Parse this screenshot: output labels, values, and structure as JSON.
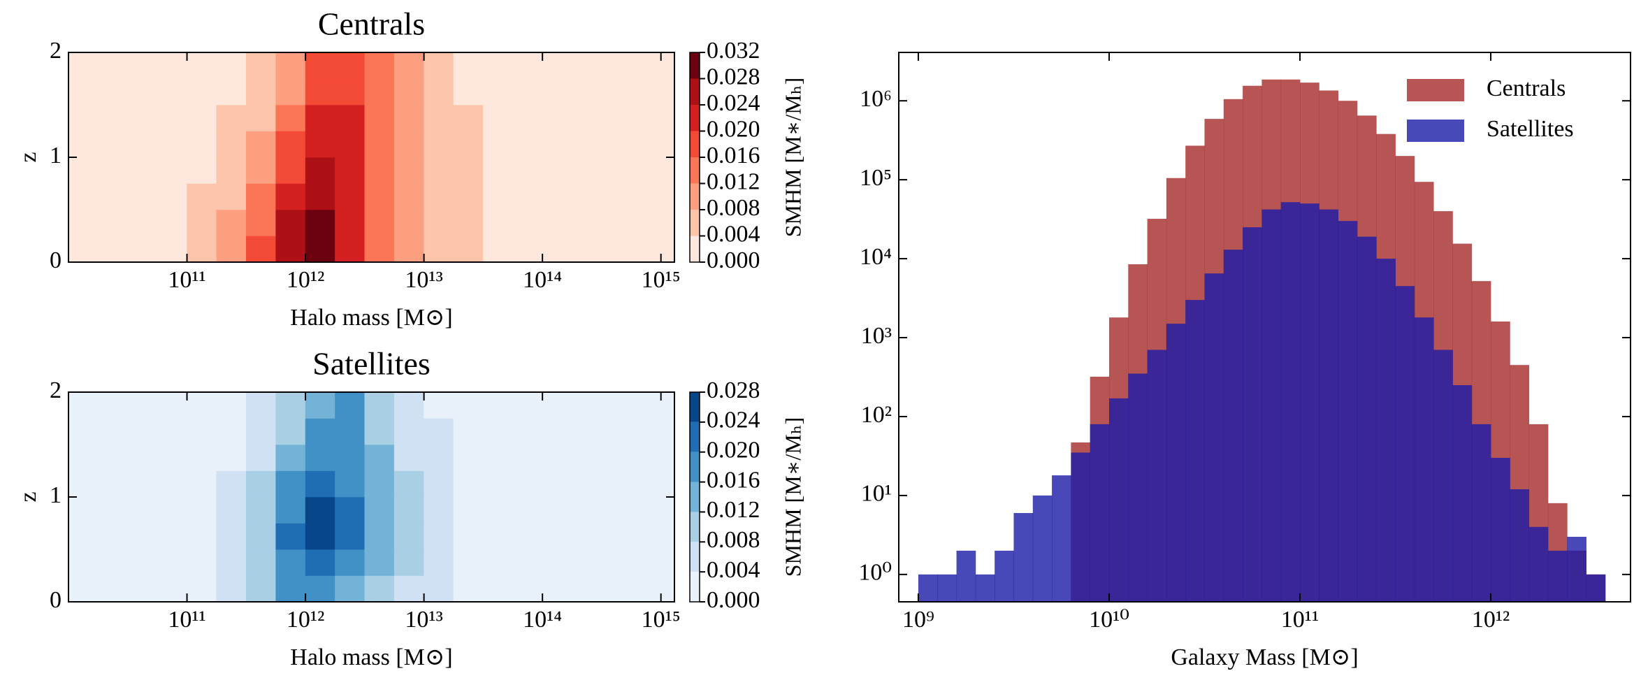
{
  "chart_data": [
    {
      "type": "contour",
      "title": "Centrals",
      "xlabel": "Halo mass [M⊙]",
      "ylabel": "z",
      "xscale": "log",
      "xlim": [
        10000000000.0,
        1300000000000000.0
      ],
      "ylim": [
        0,
        2
      ],
      "xticks": [
        {
          "value": 100000000000.0,
          "label": "10¹¹"
        },
        {
          "value": 1000000000000.0,
          "label": "10¹²"
        },
        {
          "value": 10000000000000.0,
          "label": "10¹³"
        },
        {
          "value": 100000000000000.0,
          "label": "10¹⁴"
        },
        {
          "value": 1000000000000000.0,
          "label": "10¹⁵"
        }
      ],
      "yticks": [
        0,
        1,
        2
      ],
      "x_edges": [
        10000000000.0,
        17780000000.0,
        31620000000.0,
        56230000000.0,
        100000000000.0,
        177800000000.0,
        316200000000.0,
        562300000000.0,
        1000000000000.0,
        1778000000000.0,
        3162000000000.0,
        5623000000000.0,
        10000000000000.0,
        17780000000000.0,
        31620000000000.0,
        56230000000000.0,
        100000000000000.0,
        177800000000000.0,
        316200000000000.0,
        562300000000000.0,
        1000000000000000.0,
        1778000000000000.0
      ],
      "y_edges": [
        0,
        0.25,
        0.5,
        0.75,
        1,
        1.25,
        1.5,
        1.75,
        2
      ],
      "z": [
        [
          0.001,
          0.001,
          0.002,
          0.003,
          0.005,
          0.009,
          0.016,
          0.026,
          0.029,
          0.021,
          0.014,
          0.01,
          0.006,
          0.005,
          0.003,
          0.002,
          0.001,
          0.001,
          0.001,
          0.001,
          0.001
        ],
        [
          0.001,
          0.001,
          0.002,
          0.003,
          0.005,
          0.008,
          0.015,
          0.025,
          0.029,
          0.022,
          0.015,
          0.01,
          0.007,
          0.005,
          0.003,
          0.002,
          0.001,
          0.001,
          0.001,
          0.001,
          0.001
        ],
        [
          0.001,
          0.001,
          0.001,
          0.002,
          0.004,
          0.007,
          0.013,
          0.022,
          0.027,
          0.022,
          0.015,
          0.01,
          0.007,
          0.005,
          0.003,
          0.002,
          0.001,
          0.001,
          0.001,
          0.001,
          0.001
        ],
        [
          0.001,
          0.001,
          0.001,
          0.002,
          0.003,
          0.006,
          0.011,
          0.019,
          0.025,
          0.022,
          0.015,
          0.01,
          0.007,
          0.004,
          0.003,
          0.002,
          0.001,
          0.001,
          0.001,
          0.001,
          0.001
        ],
        [
          0.001,
          0.001,
          0.001,
          0.002,
          0.003,
          0.005,
          0.009,
          0.016,
          0.023,
          0.021,
          0.015,
          0.01,
          0.006,
          0.004,
          0.003,
          0.002,
          0.001,
          0.001,
          0.001,
          0.001,
          0.001
        ],
        [
          0.001,
          0.001,
          0.001,
          0.001,
          0.002,
          0.004,
          0.007,
          0.013,
          0.02,
          0.02,
          0.015,
          0.01,
          0.006,
          0.004,
          0.002,
          0.001,
          0.001,
          0.001,
          0.001,
          0.001,
          0.001
        ],
        [
          0.001,
          0.001,
          0.001,
          0.001,
          0.002,
          0.003,
          0.006,
          0.011,
          0.018,
          0.019,
          0.014,
          0.009,
          0.006,
          0.003,
          0.002,
          0.001,
          0.001,
          0.001,
          0.001,
          0.001,
          0.001
        ],
        [
          0.001,
          0.001,
          0.001,
          0.001,
          0.002,
          0.003,
          0.005,
          0.01,
          0.017,
          0.018,
          0.013,
          0.009,
          0.005,
          0.003,
          0.002,
          0.001,
          0.001,
          0.001,
          0.001,
          0.001,
          0.001
        ]
      ],
      "levels": [
        {
          "value": 0,
          "label": "0.000"
        },
        {
          "value": 0.004,
          "label": "0.004"
        },
        {
          "value": 0.008,
          "label": "0.008"
        },
        {
          "value": 0.012,
          "label": "0.012"
        },
        {
          "value": 0.016,
          "label": "0.016"
        },
        {
          "value": 0.02,
          "label": "0.020"
        },
        {
          "value": 0.024,
          "label": "0.024"
        },
        {
          "value": 0.028,
          "label": "0.028"
        },
        {
          "value": 0.032,
          "label": "0.032"
        }
      ],
      "colors": [
        "#fee8dd",
        "#fcc5ab",
        "#fc9f81",
        "#fb7656",
        "#f34a36",
        "#d42020",
        "#ad1117",
        "#6b010e"
      ],
      "colorbar_label": "SMHM [M∗/Mₕ]"
    },
    {
      "type": "contour",
      "title": "Satellites",
      "xlabel": "Halo mass [M⊙]",
      "ylabel": "z",
      "xscale": "log",
      "xlim": [
        10000000000.0,
        1300000000000000.0
      ],
      "ylim": [
        0,
        2
      ],
      "xticks": [
        {
          "value": 100000000000.0,
          "label": "10¹¹"
        },
        {
          "value": 1000000000000.0,
          "label": "10¹²"
        },
        {
          "value": 10000000000000.0,
          "label": "10¹³"
        },
        {
          "value": 100000000000000.0,
          "label": "10¹⁴"
        },
        {
          "value": 1000000000000000.0,
          "label": "10¹⁵"
        }
      ],
      "yticks": [
        0,
        1,
        2
      ],
      "x_edges": [
        10000000000.0,
        17780000000.0,
        31620000000.0,
        56230000000.0,
        100000000000.0,
        177800000000.0,
        316200000000.0,
        562300000000.0,
        1000000000000.0,
        1778000000000.0,
        3162000000000.0,
        5623000000000.0,
        10000000000000.0,
        17780000000000.0,
        31620000000000.0,
        56230000000000.0,
        100000000000000.0,
        177800000000000.0,
        316200000000000.0,
        562300000000000.0,
        1000000000000000.0,
        1778000000000000.0
      ],
      "y_edges": [
        0,
        0.25,
        0.5,
        0.75,
        1,
        1.25,
        1.5,
        1.75,
        2
      ],
      "z": [
        [
          0.001,
          0.001,
          0.001,
          0.002,
          0.003,
          0.006,
          0.01,
          0.016,
          0.019,
          0.015,
          0.011,
          0.007,
          0.005,
          0.003,
          0.002,
          0.001,
          0.001,
          0.001,
          0.001,
          0.001,
          0.001
        ],
        [
          0.001,
          0.001,
          0.001,
          0.002,
          0.003,
          0.006,
          0.011,
          0.019,
          0.023,
          0.018,
          0.012,
          0.008,
          0.005,
          0.003,
          0.002,
          0.001,
          0.001,
          0.001,
          0.001,
          0.001,
          0.001
        ],
        [
          0.001,
          0.001,
          0.001,
          0.002,
          0.003,
          0.006,
          0.011,
          0.021,
          0.025,
          0.02,
          0.013,
          0.008,
          0.005,
          0.003,
          0.002,
          0.001,
          0.001,
          0.001,
          0.001,
          0.001,
          0.001
        ],
        [
          0.001,
          0.001,
          0.001,
          0.002,
          0.003,
          0.005,
          0.01,
          0.019,
          0.024,
          0.02,
          0.013,
          0.008,
          0.005,
          0.003,
          0.002,
          0.001,
          0.001,
          0.001,
          0.001,
          0.001,
          0.001
        ],
        [
          0.001,
          0.001,
          0.001,
          0.001,
          0.002,
          0.004,
          0.008,
          0.016,
          0.021,
          0.019,
          0.013,
          0.008,
          0.005,
          0.003,
          0.001,
          0.001,
          0.001,
          0.001,
          0.001,
          0.001,
          0.001
        ],
        [
          0.001,
          0.001,
          0.001,
          0.001,
          0.002,
          0.003,
          0.007,
          0.013,
          0.018,
          0.018,
          0.012,
          0.007,
          0.004,
          0.002,
          0.001,
          0.001,
          0.001,
          0.001,
          0.001,
          0.001,
          0.001
        ],
        [
          0.001,
          0.001,
          0.001,
          0.001,
          0.001,
          0.002,
          0.006,
          0.011,
          0.016,
          0.017,
          0.011,
          0.007,
          0.004,
          0.002,
          0.001,
          0.001,
          0.001,
          0.001,
          0.001,
          0.001,
          0.001
        ],
        [
          0.001,
          0.001,
          0.001,
          0.001,
          0.001,
          0.002,
          0.005,
          0.01,
          0.015,
          0.016,
          0.011,
          0.006,
          0.003,
          0.002,
          0.001,
          0.001,
          0.001,
          0.001,
          0.001,
          0.001,
          0.001
        ]
      ],
      "levels": [
        {
          "value": 0,
          "label": "0.000"
        },
        {
          "value": 0.004,
          "label": "0.004"
        },
        {
          "value": 0.008,
          "label": "0.008"
        },
        {
          "value": 0.012,
          "label": "0.012"
        },
        {
          "value": 0.016,
          "label": "0.016"
        },
        {
          "value": 0.02,
          "label": "0.020"
        },
        {
          "value": 0.024,
          "label": "0.024"
        },
        {
          "value": 0.028,
          "label": "0.028"
        }
      ],
      "colors": [
        "#e9f2fb",
        "#cfe1f2",
        "#a9cfe5",
        "#74b3d8",
        "#4191c6",
        "#1f6eb3",
        "#08468b"
      ],
      "colorbar_label": "SMHM [M∗/Mₕ]"
    },
    {
      "type": "histogram",
      "xlabel": "Galaxy Mass [M⊙]",
      "xscale": "log",
      "yscale": "log",
      "xlim": [
        790000000.0,
        5400000000000.0
      ],
      "ylim": [
        0.45,
        4100000.0
      ],
      "xticks": [
        {
          "value": 1000000000.0,
          "label": "10⁹"
        },
        {
          "value": 10000000000.0,
          "label": "10¹⁰"
        },
        {
          "value": 100000000000.0,
          "label": "10¹¹"
        },
        {
          "value": 1000000000000.0,
          "label": "10¹²"
        }
      ],
      "yticks": [
        {
          "value": 1,
          "label": "10⁰"
        },
        {
          "value": 10,
          "label": "10¹"
        },
        {
          "value": 100,
          "label": "10²"
        },
        {
          "value": 1000,
          "label": "10³"
        },
        {
          "value": 10000,
          "label": "10⁴"
        },
        {
          "value": 100000,
          "label": "10⁵"
        },
        {
          "value": 1000000,
          "label": "10⁶"
        }
      ],
      "bins": [
        1000000000.0,
        1259000000.0,
        1585000000.0,
        1995000000.0,
        2512000000.0,
        3162000000.0,
        3981000000.0,
        5012000000.0,
        6310000000.0,
        7943000000.0,
        10000000000.0,
        12590000000.0,
        15850000000.0,
        19950000000.0,
        25120000000.0,
        31620000000.0,
        39810000000.0,
        50120000000.0,
        63100000000.0,
        79430000000.0,
        100000000000.0,
        125900000000.0,
        158500000000.0,
        199500000000.0,
        251200000000.0,
        316200000000.0,
        398100000000.0,
        501200000000.0,
        631000000000.0,
        794300000000.0,
        1000000000000.0,
        1259000000000.0,
        1585000000000.0,
        1995000000000.0,
        2512000000000.0,
        3162000000000.0,
        3981000000000.0
      ],
      "series": [
        {
          "name": "Centrals",
          "color": "#a52a2a",
          "values": [
            0,
            0,
            0,
            0,
            0,
            0,
            0,
            0,
            47,
            320,
            1800,
            8500,
            32000,
            105000,
            270000,
            590000,
            1050000,
            1550000,
            1860000,
            1860000,
            1700000,
            1350000,
            1000000,
            650000,
            380000,
            200000,
            94000,
            40000,
            15500,
            5200,
            1600,
            450,
            80,
            8,
            2,
            1
          ]
        },
        {
          "name": "Satellites",
          "color": "#1a1aa6",
          "values": [
            1,
            1,
            2,
            1,
            2,
            6,
            10,
            18,
            35,
            80,
            170,
            350,
            700,
            1500,
            3000,
            6500,
            13000,
            25000,
            42000,
            52000,
            50000,
            42000,
            30000,
            19000,
            10000,
            4500,
            1800,
            700,
            250,
            80,
            30,
            12,
            4,
            2,
            3,
            1
          ]
        }
      ],
      "alpha": 0.8,
      "legend": "upper right"
    }
  ]
}
